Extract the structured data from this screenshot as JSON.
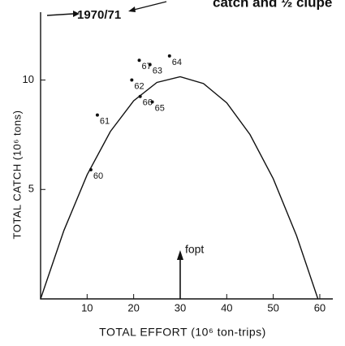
{
  "chart_data": {
    "type": "scatter",
    "header_text": "catch and ½ clupe",
    "annotations": [
      "1970/71",
      "fopt"
    ],
    "x_label": "TOTAL EFFORT (10⁶ ton-trips)",
    "y_label": "TOTAL CATCH (10⁶ tons)",
    "labels": [
      "60",
      "61",
      "62",
      "63",
      "64",
      "65",
      "66",
      "67"
    ],
    "x": [
      10.8,
      12.2,
      19.6,
      23.5,
      27.7,
      24.0,
      21.4,
      21.2
    ],
    "values": [
      5.9,
      8.4,
      10.0,
      10.7,
      11.1,
      9.0,
      9.25,
      10.9
    ],
    "curve": {
      "x": [
        0,
        5,
        10,
        15,
        20,
        25,
        30,
        35,
        40,
        45,
        50,
        55,
        59.6
      ],
      "values": [
        0,
        3.12,
        5.67,
        7.65,
        9.05,
        9.89,
        10.15,
        9.84,
        8.96,
        7.51,
        5.49,
        2.89,
        0
      ]
    },
    "fopt": 30,
    "xlim": [
      0,
      62.8
    ],
    "ylim": [
      0,
      13.1
    ],
    "xticks": [
      10,
      20,
      30,
      40,
      50,
      60
    ],
    "yticks": [
      5,
      10
    ],
    "color": "#111111"
  }
}
